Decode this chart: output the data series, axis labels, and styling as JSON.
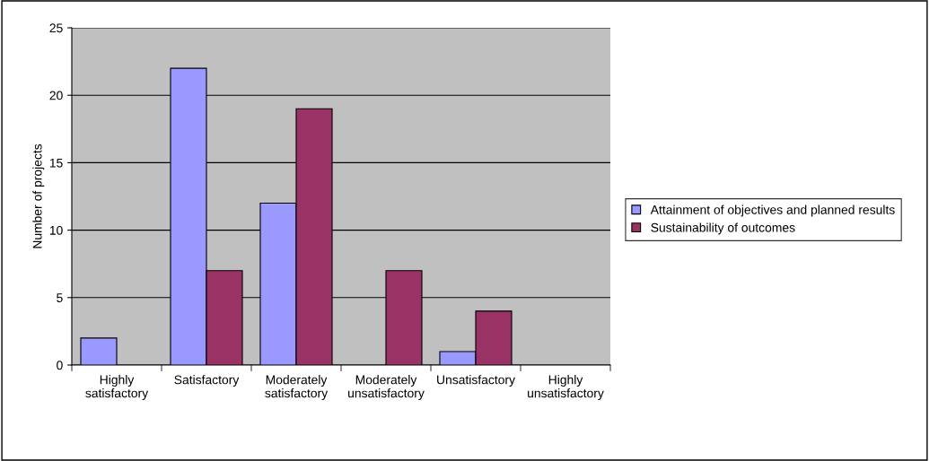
{
  "chart_data": {
    "type": "bar",
    "ylabel": "Number of projects",
    "categories": [
      "Highly\nsatisfactory",
      "Satisfactory",
      "Moderately\nsatisfactory",
      "Moderately\nunsatisfactory",
      "Unsatisfactory",
      "Highly\nunsatisfactory"
    ],
    "series": [
      {
        "name": "Attainment of objectives and planned results",
        "color": "#9999ff",
        "values": [
          2,
          22,
          12,
          null,
          1,
          null
        ]
      },
      {
        "name": "Sustainability of outcomes",
        "color": "#993366",
        "values": [
          null,
          7,
          19,
          7,
          4,
          null
        ]
      }
    ],
    "ylim": [
      0,
      25
    ],
    "yticks": [
      0,
      5,
      10,
      15,
      20,
      25
    ],
    "grid": "y",
    "legend": "right"
  }
}
